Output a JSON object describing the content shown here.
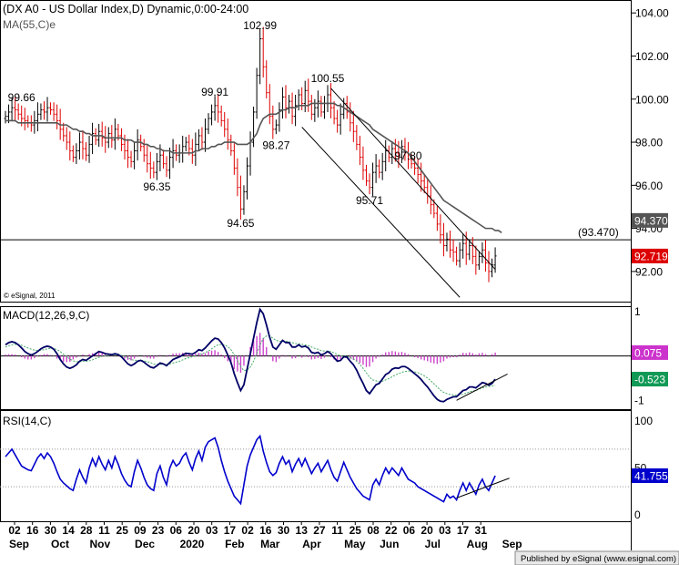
{
  "chart_data": {
    "type": "candlestick",
    "title": "(DX A0 - US Dollar Index,D) Dynamic,0:00-24:00",
    "ma_label": "MA(55,C)e",
    "copyright": "© eSignal, 2011",
    "publisher": "Published by eSignal (www.esignal.com)",
    "colors": {
      "up": "#000000",
      "down": "#dd0000",
      "ma": "#555555",
      "macd": "#000066",
      "signal": "#44aa66",
      "hist": "#cc44cc",
      "rsi": "#0000cc"
    },
    "price_axis": {
      "ylim": [
        90.6,
        104.6
      ],
      "ticks": [
        "104.00",
        "102.00",
        "100.00",
        "98.00",
        "96.00",
        "94.00",
        "92.00"
      ]
    },
    "price_badges": [
      {
        "label": "94.370",
        "value": 94.37,
        "color": "#555555"
      },
      {
        "label": "92.719",
        "value": 92.719,
        "color": "#dd0000"
      }
    ],
    "horizontal_line": {
      "label": "(93.470)",
      "value": 93.47
    },
    "annotations": [
      {
        "text": "99.66",
        "t": 5,
        "value": 99.66
      },
      {
        "text": "102.99",
        "t": 79,
        "value": 102.99
      },
      {
        "text": "100.55",
        "t": 100,
        "value": 100.55
      },
      {
        "text": "99.91",
        "t": 65,
        "value": 99.91
      },
      {
        "text": "98.27",
        "t": 84,
        "value": 98.27
      },
      {
        "text": "97.80",
        "t": 125,
        "value": 97.8
      },
      {
        "text": "96.35",
        "t": 47,
        "value": 96.35
      },
      {
        "text": "95.71",
        "t": 113,
        "value": 95.71
      },
      {
        "text": "94.65",
        "t": 73,
        "value": 94.65
      }
    ],
    "channel_lines": [
      {
        "t1": 101,
        "v1": 100.5,
        "t2": 152,
        "v2": 92.1
      },
      {
        "t1": 92,
        "v1": 98.7,
        "t2": 141,
        "v2": 90.8
      }
    ],
    "closes": [
      99.2,
      99.4,
      99.6,
      99.5,
      99.3,
      99.1,
      99.0,
      98.9,
      98.8,
      99.0,
      99.3,
      99.5,
      99.4,
      99.6,
      99.5,
      99.3,
      99.0,
      98.6,
      98.3,
      98.0,
      97.6,
      97.3,
      97.6,
      98.0,
      97.7,
      97.4,
      97.9,
      98.4,
      98.1,
      98.5,
      98.2,
      98.0,
      98.4,
      98.1,
      98.6,
      98.3,
      97.9,
      97.6,
      97.3,
      97.1,
      97.6,
      98.1,
      97.8,
      97.4,
      97.0,
      96.8,
      96.6,
      97.1,
      97.4,
      97.0,
      96.7,
      97.3,
      97.6,
      97.4,
      97.5,
      97.8,
      98.0,
      97.7,
      97.4,
      97.9,
      98.3,
      98.0,
      98.6,
      99.1,
      99.4,
      99.7,
      99.4,
      99.0,
      98.6,
      98.1,
      97.6,
      96.8,
      95.9,
      94.9,
      95.7,
      96.9,
      98.0,
      99.4,
      101.1,
      102.8,
      101.5,
      100.3,
      99.2,
      98.6,
      98.8,
      99.5,
      100.1,
      99.6,
      99.9,
      99.2,
      99.7,
      100.2,
      99.8,
      100.4,
      99.9,
      99.3,
      99.6,
      99.9,
      99.4,
      99.8,
      100.2,
      99.6,
      99.1,
      98.8,
      99.3,
      99.8,
      99.4,
      98.9,
      98.5,
      97.9,
      97.3,
      96.7,
      96.2,
      95.9,
      96.6,
      96.9,
      96.6,
      97.1,
      97.6,
      97.3,
      97.7,
      97.5,
      97.3,
      97.8,
      97.5,
      97.2,
      97.0,
      96.8,
      96.5,
      96.2,
      95.9,
      95.5,
      95.1,
      94.7,
      94.2,
      93.7,
      93.2,
      93.5,
      93.0,
      92.9,
      92.5,
      93.0,
      93.3,
      92.8,
      93.2,
      92.7,
      92.3,
      92.7,
      93.0,
      92.4,
      92.0,
      92.3,
      92.72
    ],
    "ma55": [
      99.0,
      99.0,
      99.0,
      99.0,
      98.9,
      98.9,
      98.9,
      98.9,
      98.9,
      98.9,
      98.9,
      98.9,
      98.9,
      98.9,
      98.9,
      98.9,
      98.9,
      98.8,
      98.8,
      98.8,
      98.7,
      98.6,
      98.6,
      98.5,
      98.5,
      98.4,
      98.4,
      98.3,
      98.3,
      98.3,
      98.3,
      98.2,
      98.2,
      98.2,
      98.2,
      98.2,
      98.2,
      98.1,
      98.1,
      98.1,
      98.0,
      98.0,
      98.0,
      97.9,
      97.9,
      97.8,
      97.8,
      97.7,
      97.7,
      97.6,
      97.6,
      97.6,
      97.5,
      97.5,
      97.5,
      97.5,
      97.5,
      97.5,
      97.5,
      97.6,
      97.6,
      97.7,
      97.7,
      97.7,
      97.8,
      97.8,
      97.9,
      97.9,
      98.0,
      98.0,
      98.0,
      98.0,
      97.9,
      97.9,
      97.9,
      97.9,
      98.0,
      98.2,
      98.4,
      98.8,
      99.1,
      99.2,
      99.3,
      99.3,
      99.3,
      99.4,
      99.5,
      99.5,
      99.6,
      99.6,
      99.6,
      99.7,
      99.7,
      99.7,
      99.7,
      99.8,
      99.8,
      99.8,
      99.8,
      99.8,
      99.8,
      99.8,
      99.8,
      99.7,
      99.7,
      99.6,
      99.5,
      99.4,
      99.3,
      99.2,
      99.1,
      99.0,
      98.9,
      98.8,
      98.6,
      98.5,
      98.4,
      98.3,
      98.2,
      98.1,
      98.0,
      97.9,
      97.8,
      97.7,
      97.6,
      97.5,
      97.3,
      97.1,
      96.9,
      96.7,
      96.5,
      96.3,
      96.1,
      95.9,
      95.7,
      95.5,
      95.3,
      95.2,
      95.1,
      95.0,
      94.9,
      94.8,
      94.7,
      94.6,
      94.5,
      94.4,
      94.3,
      94.2,
      94.1,
      94.0,
      94.0,
      94.0,
      93.9,
      93.9,
      93.8
    ],
    "macd_panel": {
      "label": "MACD(12,26,9,C)",
      "ylim": [
        -1.2,
        1.1
      ],
      "ticks": [
        "1",
        "-1"
      ],
      "badges": [
        {
          "label": "0.075",
          "value": 0.075,
          "color": "#cc33cc"
        },
        {
          "label": "-0.523",
          "value": -0.523,
          "color": "#119955"
        }
      ],
      "macd": [
        0.25,
        0.3,
        0.32,
        0.3,
        0.25,
        0.18,
        0.1,
        0.05,
        0.02,
        0.05,
        0.1,
        0.16,
        0.2,
        0.22,
        0.2,
        0.15,
        0.05,
        -0.08,
        -0.18,
        -0.25,
        -0.28,
        -0.25,
        -0.2,
        -0.12,
        -0.08,
        -0.1,
        -0.05,
        0.0,
        0.05,
        0.1,
        0.08,
        0.05,
        0.04,
        0.03,
        0.05,
        0.03,
        -0.02,
        -0.1,
        -0.18,
        -0.22,
        -0.18,
        -0.12,
        -0.1,
        -0.14,
        -0.2,
        -0.25,
        -0.27,
        -0.22,
        -0.16,
        -0.18,
        -0.22,
        -0.15,
        -0.08,
        -0.05,
        -0.02,
        0.02,
        0.06,
        0.05,
        0.04,
        0.08,
        0.14,
        0.12,
        0.18,
        0.26,
        0.34,
        0.4,
        0.38,
        0.3,
        0.18,
        0.02,
        -0.15,
        -0.4,
        -0.6,
        -0.78,
        -0.65,
        -0.3,
        0.05,
        0.4,
        0.75,
        1.05,
        0.95,
        0.7,
        0.42,
        0.2,
        0.15,
        0.25,
        0.35,
        0.3,
        0.3,
        0.2,
        0.2,
        0.25,
        0.2,
        0.22,
        0.18,
        0.08,
        0.06,
        0.08,
        0.02,
        0.05,
        0.1,
        0.05,
        -0.04,
        -0.12,
        -0.1,
        -0.02,
        -0.03,
        -0.12,
        -0.2,
        -0.32,
        -0.48,
        -0.62,
        -0.78,
        -0.85,
        -0.75,
        -0.65,
        -0.62,
        -0.52,
        -0.42,
        -0.38,
        -0.3,
        -0.27,
        -0.28,
        -0.24,
        -0.24,
        -0.28,
        -0.34,
        -0.4,
        -0.46,
        -0.53,
        -0.62,
        -0.7,
        -0.8,
        -0.9,
        -0.98,
        -1.02,
        -1.03,
        -0.98,
        -0.95,
        -0.92,
        -0.92,
        -0.85,
        -0.78,
        -0.76,
        -0.7,
        -0.7,
        -0.72,
        -0.66,
        -0.6,
        -0.62,
        -0.66,
        -0.62,
        -0.523
      ],
      "signal": [
        0.2,
        0.23,
        0.25,
        0.26,
        0.26,
        0.24,
        0.21,
        0.18,
        0.15,
        0.13,
        0.12,
        0.13,
        0.14,
        0.16,
        0.17,
        0.17,
        0.14,
        0.1,
        0.04,
        -0.02,
        -0.07,
        -0.11,
        -0.13,
        -0.13,
        -0.12,
        -0.12,
        -0.11,
        -0.09,
        -0.06,
        -0.03,
        -0.01,
        0.0,
        0.01,
        0.02,
        0.02,
        0.02,
        0.01,
        -0.01,
        -0.04,
        -0.08,
        -0.1,
        -0.1,
        -0.1,
        -0.11,
        -0.13,
        -0.15,
        -0.18,
        -0.19,
        -0.19,
        -0.18,
        -0.19,
        -0.18,
        -0.16,
        -0.14,
        -0.12,
        -0.09,
        -0.06,
        -0.04,
        -0.02,
        0.0,
        0.03,
        0.05,
        0.08,
        0.11,
        0.16,
        0.21,
        0.25,
        0.26,
        0.25,
        0.21,
        0.14,
        0.03,
        -0.1,
        -0.24,
        -0.33,
        -0.32,
        -0.25,
        -0.12,
        0.05,
        0.25,
        0.39,
        0.45,
        0.45,
        0.4,
        0.35,
        0.33,
        0.33,
        0.33,
        0.32,
        0.3,
        0.28,
        0.27,
        0.26,
        0.25,
        0.23,
        0.2,
        0.17,
        0.15,
        0.12,
        0.11,
        0.11,
        0.1,
        0.07,
        0.03,
        0.0,
        -0.01,
        -0.01,
        -0.04,
        -0.07,
        -0.12,
        -0.19,
        -0.28,
        -0.38,
        -0.48,
        -0.54,
        -0.56,
        -0.58,
        -0.57,
        -0.54,
        -0.51,
        -0.47,
        -0.43,
        -0.4,
        -0.37,
        -0.35,
        -0.34,
        -0.34,
        -0.36,
        -0.38,
        -0.41,
        -0.45,
        -0.5,
        -0.56,
        -0.63,
        -0.7,
        -0.77,
        -0.82,
        -0.85,
        -0.87,
        -0.88,
        -0.89,
        -0.88,
        -0.86,
        -0.84,
        -0.81,
        -0.79,
        -0.78,
        -0.75,
        -0.72,
        -0.7,
        -0.69,
        -0.68,
        -0.66
      ],
      "hist": [
        0.03,
        0.04,
        0.04,
        0.03,
        0.0,
        -0.03,
        -0.06,
        -0.08,
        -0.08,
        -0.05,
        -0.01,
        0.02,
        0.04,
        0.04,
        0.02,
        -0.01,
        -0.06,
        -0.1,
        -0.13,
        -0.14,
        -0.13,
        -0.08,
        -0.04,
        0.01,
        0.03,
        0.01,
        0.04,
        0.06,
        0.07,
        0.08,
        0.06,
        0.03,
        0.02,
        0.01,
        0.02,
        0.01,
        -0.02,
        -0.06,
        -0.09,
        -0.1,
        -0.06,
        -0.02,
        0.0,
        -0.02,
        -0.04,
        -0.06,
        -0.06,
        -0.02,
        0.02,
        0.0,
        -0.02,
        0.02,
        0.05,
        0.06,
        0.06,
        0.07,
        0.07,
        0.06,
        0.04,
        0.05,
        0.07,
        0.05,
        0.06,
        0.1,
        0.12,
        0.13,
        0.09,
        0.03,
        -0.05,
        -0.12,
        -0.19,
        -0.3,
        -0.35,
        -0.38,
        -0.22,
        0.01,
        0.2,
        0.35,
        0.45,
        0.52,
        0.4,
        0.2,
        0.0,
        -0.12,
        -0.14,
        -0.06,
        0.02,
        -0.02,
        0.0,
        -0.06,
        -0.05,
        0.0,
        -0.04,
        -0.02,
        -0.03,
        -0.08,
        -0.07,
        -0.05,
        -0.07,
        -0.04,
        0.0,
        -0.03,
        -0.08,
        -0.1,
        -0.07,
        0.0,
        0.0,
        -0.06,
        -0.09,
        -0.12,
        -0.16,
        -0.2,
        -0.25,
        -0.24,
        -0.14,
        -0.06,
        -0.02,
        0.03,
        0.08,
        0.09,
        0.11,
        0.1,
        0.08,
        0.09,
        0.07,
        0.04,
        0.0,
        -0.03,
        -0.05,
        -0.08,
        -0.1,
        -0.12,
        -0.15,
        -0.17,
        -0.18,
        -0.15,
        -0.12,
        -0.06,
        -0.04,
        -0.03,
        -0.03,
        0.03,
        0.07,
        0.06,
        0.08,
        0.06,
        0.03,
        0.06,
        0.07,
        0.04,
        0.0,
        0.04,
        0.075
      ]
    },
    "rsi_panel": {
      "label": "RSI(14,C)",
      "ylim": [
        0,
        100
      ],
      "ticks": [
        "100",
        "50",
        "0"
      ],
      "levels": [
        70,
        30
      ],
      "badge": {
        "label": "41.755",
        "value": 41.755,
        "color": "#0000cc"
      },
      "values": [
        62,
        66,
        70,
        64,
        58,
        52,
        50,
        48,
        47,
        54,
        61,
        65,
        60,
        66,
        62,
        55,
        46,
        38,
        34,
        31,
        28,
        26,
        38,
        48,
        40,
        34,
        50,
        60,
        52,
        62,
        54,
        48,
        58,
        50,
        62,
        54,
        44,
        37,
        32,
        30,
        46,
        58,
        50,
        40,
        32,
        28,
        26,
        44,
        52,
        40,
        32,
        50,
        58,
        52,
        55,
        62,
        66,
        56,
        48,
        60,
        68,
        58,
        72,
        78,
        80,
        82,
        72,
        58,
        46,
        36,
        28,
        20,
        16,
        12,
        32,
        52,
        64,
        72,
        80,
        84,
        68,
        56,
        46,
        42,
        45,
        55,
        62,
        54,
        58,
        46,
        54,
        60,
        52,
        60,
        52,
        44,
        50,
        55,
        46,
        52,
        58,
        48,
        40,
        36,
        46,
        56,
        48,
        40,
        34,
        28,
        24,
        20,
        18,
        16,
        32,
        38,
        32,
        42,
        50,
        44,
        50,
        46,
        42,
        50,
        44,
        38,
        36,
        34,
        30,
        28,
        26,
        24,
        22,
        20,
        18,
        16,
        14,
        22,
        18,
        20,
        16,
        26,
        34,
        26,
        34,
        28,
        22,
        32,
        38,
        30,
        26,
        34,
        41.755
      ],
      "trendline": {
        "t1": 140,
        "v1": 18,
        "t2": 153,
        "v2": 42
      }
    },
    "macd_trendline": {
      "t1": 140,
      "v1": -1.0,
      "t2": 153,
      "v2": -0.45
    },
    "x_axis": {
      "day_ticks": [
        "02",
        "16",
        "30",
        "14",
        "28",
        "11",
        "25",
        "09",
        "23",
        "06",
        "20",
        "03",
        "17",
        "02",
        "16",
        "30",
        "13",
        "27",
        "11",
        "25",
        "08",
        "22",
        "06",
        "20",
        "03",
        "17",
        "31"
      ],
      "month_labels": [
        {
          "text": "Sep",
          "t": 0
        },
        {
          "text": "Oct",
          "t": 13
        },
        {
          "text": "Nov",
          "t": 25
        },
        {
          "text": "Dec",
          "t": 39
        },
        {
          "text": "2020",
          "t": 53
        },
        {
          "text": "Feb",
          "t": 67
        },
        {
          "text": "Mar",
          "t": 78
        },
        {
          "text": "Apr",
          "t": 91
        },
        {
          "text": "May",
          "t": 104
        },
        {
          "text": "Jun",
          "t": 115
        },
        {
          "text": "Jul",
          "t": 129
        },
        {
          "text": "Aug",
          "t": 142
        },
        {
          "text": "Sep",
          "t": 153
        }
      ]
    }
  }
}
